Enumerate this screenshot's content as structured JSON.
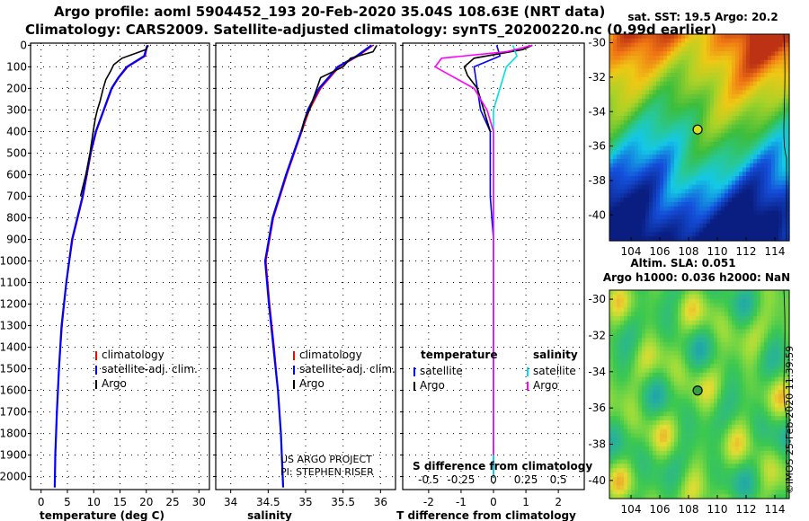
{
  "header": {
    "line1": "Argo profile: aoml 5904452_193 20-Feb-2020 35.04S 108.63E (NRT data)",
    "line2": "Climatology: CARS2009. Satellite-adjusted climatology: synTS_20200220.nc (0.99d earlier)"
  },
  "colors": {
    "climatology": "#ff0000",
    "satellite": "#0000ff",
    "argo": "#000000",
    "sat_s": "#00e0e0",
    "argo_s": "#ff00ff"
  },
  "depth_axis": {
    "ticks": [
      "0",
      "100",
      "200",
      "300",
      "400",
      "500",
      "600",
      "700",
      "800",
      "900",
      "1000",
      "1100",
      "1200",
      "1300",
      "1400",
      "1500",
      "1600",
      "1700",
      "1800",
      "1900",
      "2000"
    ]
  },
  "credits": {
    "line1": "US ARGO PROJECT",
    "line2": "PI: STEPHEN RISER"
  },
  "footer": {
    "timestamp": "©IMOS 25-Feb-2020 11:39:59"
  },
  "chart_data": [
    {
      "type": "line",
      "id": "temp",
      "xlabel": "temperature (deg C)",
      "xlim": [
        -2,
        32
      ],
      "ylim": [
        2060,
        -10
      ],
      "xticks": [
        "0",
        "5",
        "10",
        "15",
        "20",
        "25",
        "30"
      ],
      "xtick_vals": [
        0,
        5,
        10,
        15,
        20,
        25,
        30
      ],
      "legend": [
        "climatology",
        "satellite-adj. clim.",
        "Argo"
      ],
      "series": [
        {
          "name": "climatology",
          "depth": [
            0,
            50,
            100,
            150,
            200,
            300,
            400,
            500,
            700,
            900,
            1100,
            1300,
            1500,
            1700,
            1900,
            2050
          ],
          "values": [
            20.2,
            19.8,
            16.5,
            14.8,
            13.5,
            12,
            10.5,
            9.5,
            8,
            6,
            4.8,
            4,
            3.4,
            3.0,
            2.7,
            2.6
          ]
        },
        {
          "name": "satellite-adj. clim.",
          "depth": [
            0,
            50,
            100,
            150,
            200,
            300,
            400,
            500,
            700,
            900,
            1100,
            1300,
            1500,
            1700,
            1900,
            2050
          ],
          "values": [
            20.2,
            19.6,
            16.3,
            14.7,
            13.4,
            11.9,
            10.4,
            9.4,
            7.9,
            5.9,
            4.8,
            3.9,
            3.4,
            3.0,
            2.7,
            2.6
          ]
        },
        {
          "name": "Argo",
          "depth": [
            0,
            20,
            60,
            90,
            120,
            160,
            200,
            260,
            300,
            340,
            400,
            500,
            600,
            700
          ],
          "values": [
            20.4,
            19.9,
            15.4,
            13.8,
            13.2,
            12.3,
            11.8,
            11.2,
            10.7,
            10.3,
            9.9,
            9.3,
            8.5,
            7.5
          ]
        }
      ]
    },
    {
      "type": "line",
      "id": "sal",
      "xlabel": "salinity",
      "xlim": [
        33.8,
        36.2
      ],
      "ylim": [
        2060,
        -10
      ],
      "xticks": [
        "34",
        "34.5",
        "35",
        "35.5",
        "36"
      ],
      "xtick_vals": [
        34,
        34.5,
        35,
        35.5,
        36
      ],
      "legend": [
        "climatology",
        "satellite-adj. clim.",
        "Argo"
      ],
      "series": [
        {
          "name": "climatology",
          "depth": [
            0,
            50,
            100,
            200,
            300,
            400,
            600,
            800,
            1000,
            1200,
            1400,
            1600,
            1800,
            2050
          ],
          "values": [
            35.9,
            35.7,
            35.45,
            35.2,
            35.05,
            34.95,
            34.75,
            34.57,
            34.47,
            34.52,
            34.58,
            34.63,
            34.67,
            34.7
          ]
        },
        {
          "name": "satellite-adj. clim.",
          "depth": [
            0,
            50,
            100,
            200,
            300,
            400,
            600,
            800,
            1000,
            1200,
            1400,
            1600,
            1800,
            2050
          ],
          "values": [
            35.88,
            35.68,
            35.43,
            35.18,
            35.03,
            34.94,
            34.74,
            34.56,
            34.46,
            34.51,
            34.57,
            34.63,
            34.67,
            34.7
          ]
        },
        {
          "name": "Argo",
          "depth": [
            0,
            30,
            60,
            100,
            150,
            200,
            250,
            300,
            350,
            400
          ],
          "values": [
            35.95,
            35.9,
            35.6,
            35.5,
            35.2,
            35.15,
            35.1,
            35.05,
            34.98,
            34.95
          ]
        }
      ]
    },
    {
      "type": "line",
      "id": "diff",
      "xlabel": "T difference from climatology",
      "xlim": [
        -2.8,
        2.8
      ],
      "ylim": [
        2060,
        -10
      ],
      "xticks": [
        "-2",
        "-1",
        "0",
        "1",
        "2"
      ],
      "xtick_vals": [
        -2,
        -1,
        0,
        1,
        2
      ],
      "top_title": "S difference from climatology",
      "top_ticks": [
        "-0.5",
        "-0.25",
        "0",
        "0.25",
        "0.5"
      ],
      "top_tick_vals": [
        -0.5,
        -0.25,
        0,
        0.25,
        0.5
      ],
      "legend_left": [
        "temperature",
        "satellite",
        "Argo"
      ],
      "legend_right": [
        "salinity",
        "satellite",
        "Argo"
      ],
      "series": [
        {
          "name": "T satellite",
          "depth": [
            0,
            50,
            100,
            200,
            300,
            400,
            700,
            900,
            1100,
            1500,
            2000
          ],
          "values": [
            0.1,
            0.2,
            -0.6,
            -0.5,
            -0.4,
            -0.1,
            -0.1,
            0.0,
            0.0,
            0.0,
            0.0
          ]
        },
        {
          "name": "T Argo",
          "depth": [
            0,
            20,
            60,
            100,
            140,
            200,
            300,
            400
          ],
          "values": [
            1.2,
            0.9,
            -0.6,
            -0.9,
            -0.8,
            -0.5,
            -0.3,
            -0.1
          ]
        },
        {
          "name": "S satellite",
          "depth": [
            0,
            50,
            100,
            200,
            300,
            400,
            2000
          ],
          "values": [
            0.15,
            0.18,
            0.1,
            0.05,
            0.0,
            0.0,
            0.0
          ]
        },
        {
          "name": "S Argo",
          "depth": [
            0,
            30,
            60,
            100,
            150,
            200,
            300,
            400,
            1900
          ],
          "values": [
            0.3,
            0.1,
            -0.4,
            -0.45,
            -0.3,
            -0.15,
            -0.05,
            0.0,
            0.0
          ]
        }
      ]
    },
    {
      "type": "heatmap",
      "id": "sst",
      "title": "sat. SST: 19.5 Argo: 20.2",
      "xticks": [
        "104",
        "106",
        "108",
        "110",
        "112",
        "114"
      ],
      "xtick_vals": [
        104,
        106,
        108,
        110,
        112,
        114
      ],
      "yticks": [
        "-30",
        "-32",
        "-34",
        "-36",
        "-38",
        "-40"
      ],
      "ytick_vals": [
        -30,
        -32,
        -34,
        -36,
        -38,
        -40
      ],
      "xlim": [
        102.5,
        115
      ],
      "ylim": [
        -41.5,
        -29.5
      ],
      "marker": {
        "lon": 108.63,
        "lat": -35.04
      }
    },
    {
      "type": "heatmap",
      "id": "sla",
      "title": "Altim. SLA: 0.051",
      "subtitle": "Argo h1000: 0.036 h2000: NaN",
      "xticks": [
        "104",
        "106",
        "108",
        "110",
        "112",
        "114"
      ],
      "xtick_vals": [
        104,
        106,
        108,
        110,
        112,
        114
      ],
      "yticks": [
        "-30",
        "-32",
        "-34",
        "-36",
        "-38",
        "-40"
      ],
      "ytick_vals": [
        -30,
        -32,
        -34,
        -36,
        -38,
        -40
      ],
      "xlim": [
        102.5,
        115
      ],
      "ylim": [
        -41,
        -29.5
      ],
      "marker": {
        "lon": 108.63,
        "lat": -35.04
      }
    }
  ]
}
